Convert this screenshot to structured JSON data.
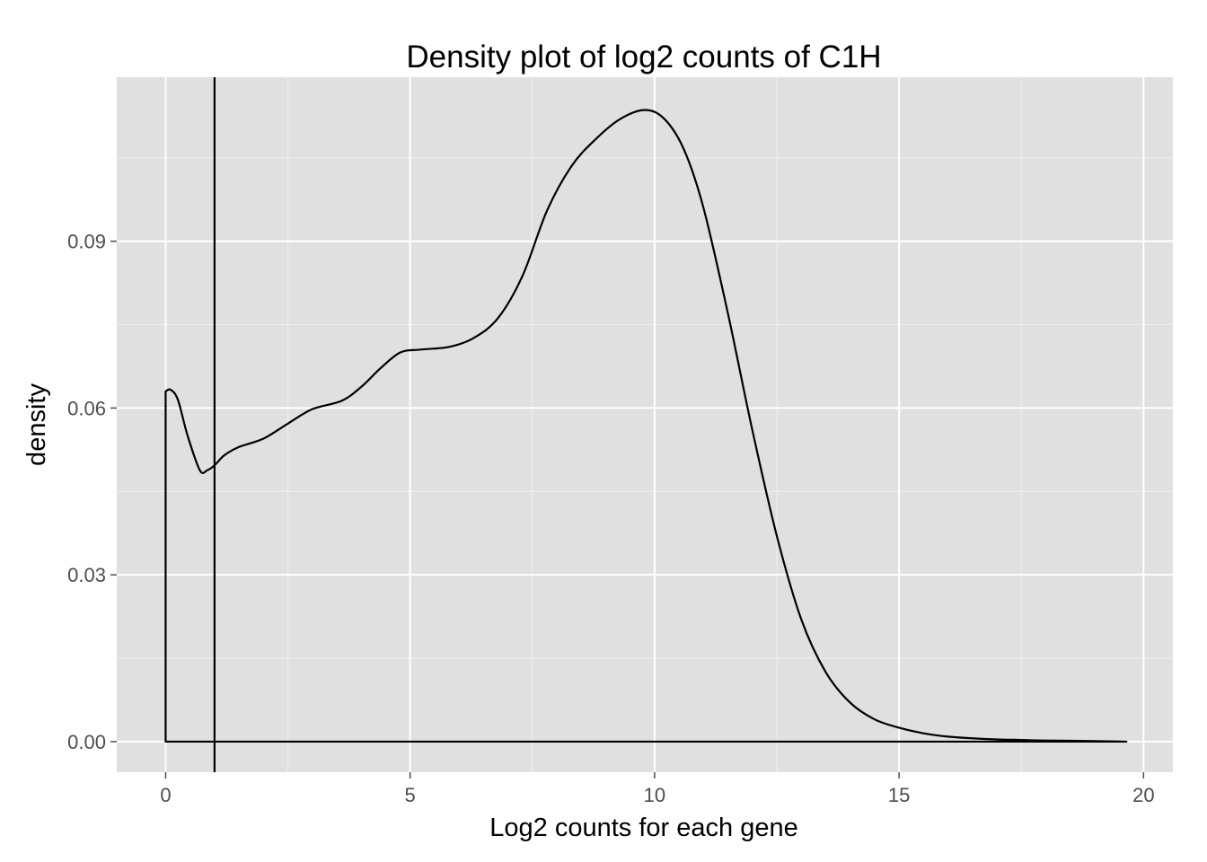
{
  "chart_data": {
    "type": "line",
    "title": "Density plot of log2 counts of C1H",
    "xlabel": "Log2 counts for each gene",
    "ylabel": "density",
    "xlim": [
      -1.0,
      20.6
    ],
    "ylim": [
      -0.0055,
      0.1195
    ],
    "x_ticks": [
      0,
      5,
      10,
      15,
      20
    ],
    "x_tick_labels": [
      "0",
      "5",
      "10",
      "15",
      "20"
    ],
    "y_ticks": [
      0.0,
      0.03,
      0.06,
      0.09
    ],
    "y_tick_labels": [
      "0.00",
      "0.03",
      "0.06",
      "0.09"
    ],
    "grid": true,
    "vline": {
      "x": 1.0
    },
    "series": [
      {
        "x": [
          0,
          0,
          0.1,
          0.25,
          0.45,
          0.7,
          0.85,
          1.0,
          1.2,
          1.5,
          2.0,
          2.5,
          3.0,
          3.6,
          4.0,
          4.4,
          4.8,
          5.2,
          5.8,
          6.3,
          6.8,
          7.3,
          7.8,
          8.3,
          8.8,
          9.3,
          9.8,
          10.2,
          10.6,
          11.0,
          11.5,
          12.0,
          12.5,
          13.0,
          13.5,
          14.0,
          14.5,
          15.0,
          15.5,
          16.0,
          16.5,
          17.0,
          17.5,
          18.0,
          19.0,
          19.65,
          19.65
        ],
        "y": [
          0,
          0.063,
          0.0633,
          0.0615,
          0.055,
          0.0488,
          0.0488,
          0.0497,
          0.0515,
          0.053,
          0.0545,
          0.0572,
          0.0598,
          0.0613,
          0.0638,
          0.0672,
          0.07,
          0.0705,
          0.071,
          0.0726,
          0.0762,
          0.0838,
          0.0955,
          0.1035,
          0.1084,
          0.112,
          0.1136,
          0.112,
          0.1065,
          0.096,
          0.077,
          0.056,
          0.037,
          0.022,
          0.0125,
          0.007,
          0.004,
          0.0025,
          0.0015,
          0.0009,
          0.0006,
          0.0004,
          0.0003,
          0.0002,
          0.0001,
          0.0,
          0
        ]
      }
    ]
  }
}
